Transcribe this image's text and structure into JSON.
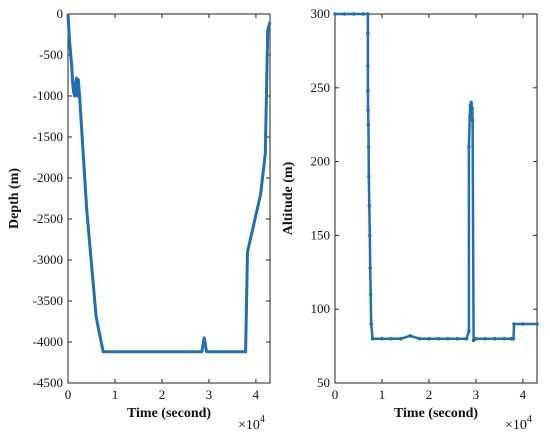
{
  "colors": {
    "series": "#1f6fb2",
    "axes": "#222222",
    "background": "#ffffff"
  },
  "chart_data": [
    {
      "type": "line",
      "xlabel": "Time (second)",
      "ylabel": "Depth (m)",
      "x_multiplier": "×10",
      "x_multiplier_exp": "4",
      "xlim": [
        0,
        43000
      ],
      "ylim": [
        -4500,
        0
      ],
      "xticks": [
        0,
        10000,
        20000,
        30000,
        40000
      ],
      "xtick_labels": [
        "0",
        "1",
        "2",
        "3",
        "4"
      ],
      "yticks": [
        0,
        -500,
        -1000,
        -1500,
        -2000,
        -2500,
        -3000,
        -3500,
        -4000,
        -4500
      ],
      "ytick_labels": [
        "0",
        "-500",
        "-1000",
        "-1500",
        "-2000",
        "-2500",
        "-3000",
        "-3500",
        "-4000",
        "-4500"
      ],
      "grid": false,
      "series": [
        {
          "x": [
            0,
            300,
            800,
            1000,
            1200,
            1400,
            1600,
            1800,
            2000,
            2200,
            2400,
            4000,
            6000,
            7500,
            10000,
            20000,
            28500,
            29000,
            29500,
            30000,
            31000,
            37800,
            38200,
            41000,
            42000,
            42500,
            43000
          ],
          "y": [
            0,
            -300,
            -650,
            -850,
            -950,
            -1000,
            -850,
            -780,
            -1000,
            -800,
            -950,
            -2400,
            -3700,
            -4120,
            -4120,
            -4120,
            -4120,
            -3950,
            -4120,
            -4120,
            -4120,
            -4120,
            -2900,
            -2200,
            -1700,
            -200,
            -100
          ]
        }
      ]
    },
    {
      "type": "scatter",
      "xlabel": "Time (second)",
      "ylabel": "Altitude (m)",
      "x_multiplier": "×10",
      "x_multiplier_exp": "4",
      "xlim": [
        0,
        43000
      ],
      "ylim": [
        50,
        300
      ],
      "xticks": [
        0,
        10000,
        20000,
        30000,
        40000
      ],
      "xtick_labels": [
        "0",
        "1",
        "2",
        "3",
        "4"
      ],
      "yticks": [
        50,
        100,
        150,
        200,
        250,
        300
      ],
      "ytick_labels": [
        "50",
        "100",
        "150",
        "200",
        "250",
        "300"
      ],
      "grid": false,
      "series": [
        {
          "x": [
            0,
            2000,
            4000,
            6000,
            7000,
            7000,
            7000,
            7000,
            7050,
            7100,
            7150,
            7200,
            7300,
            7400,
            7500,
            7600,
            7700,
            8000,
            10000,
            12000,
            14000,
            16000,
            18000,
            20000,
            22000,
            24000,
            26000,
            28000,
            28500,
            28500,
            28700,
            28800,
            29000,
            29200,
            29300,
            29500,
            30000,
            32000,
            34000,
            36000,
            37500,
            38000,
            38100,
            40000,
            43000
          ],
          "y": [
            300,
            300,
            300,
            300,
            300,
            287,
            265,
            248,
            235,
            225,
            210,
            190,
            170,
            150,
            128,
            110,
            90,
            80,
            80,
            80,
            80,
            82,
            80,
            80,
            80,
            80,
            80,
            80,
            85,
            210,
            230,
            238,
            240,
            236,
            228,
            79,
            80,
            80,
            80,
            80,
            80,
            80,
            90,
            90,
            90
          ]
        }
      ]
    }
  ]
}
